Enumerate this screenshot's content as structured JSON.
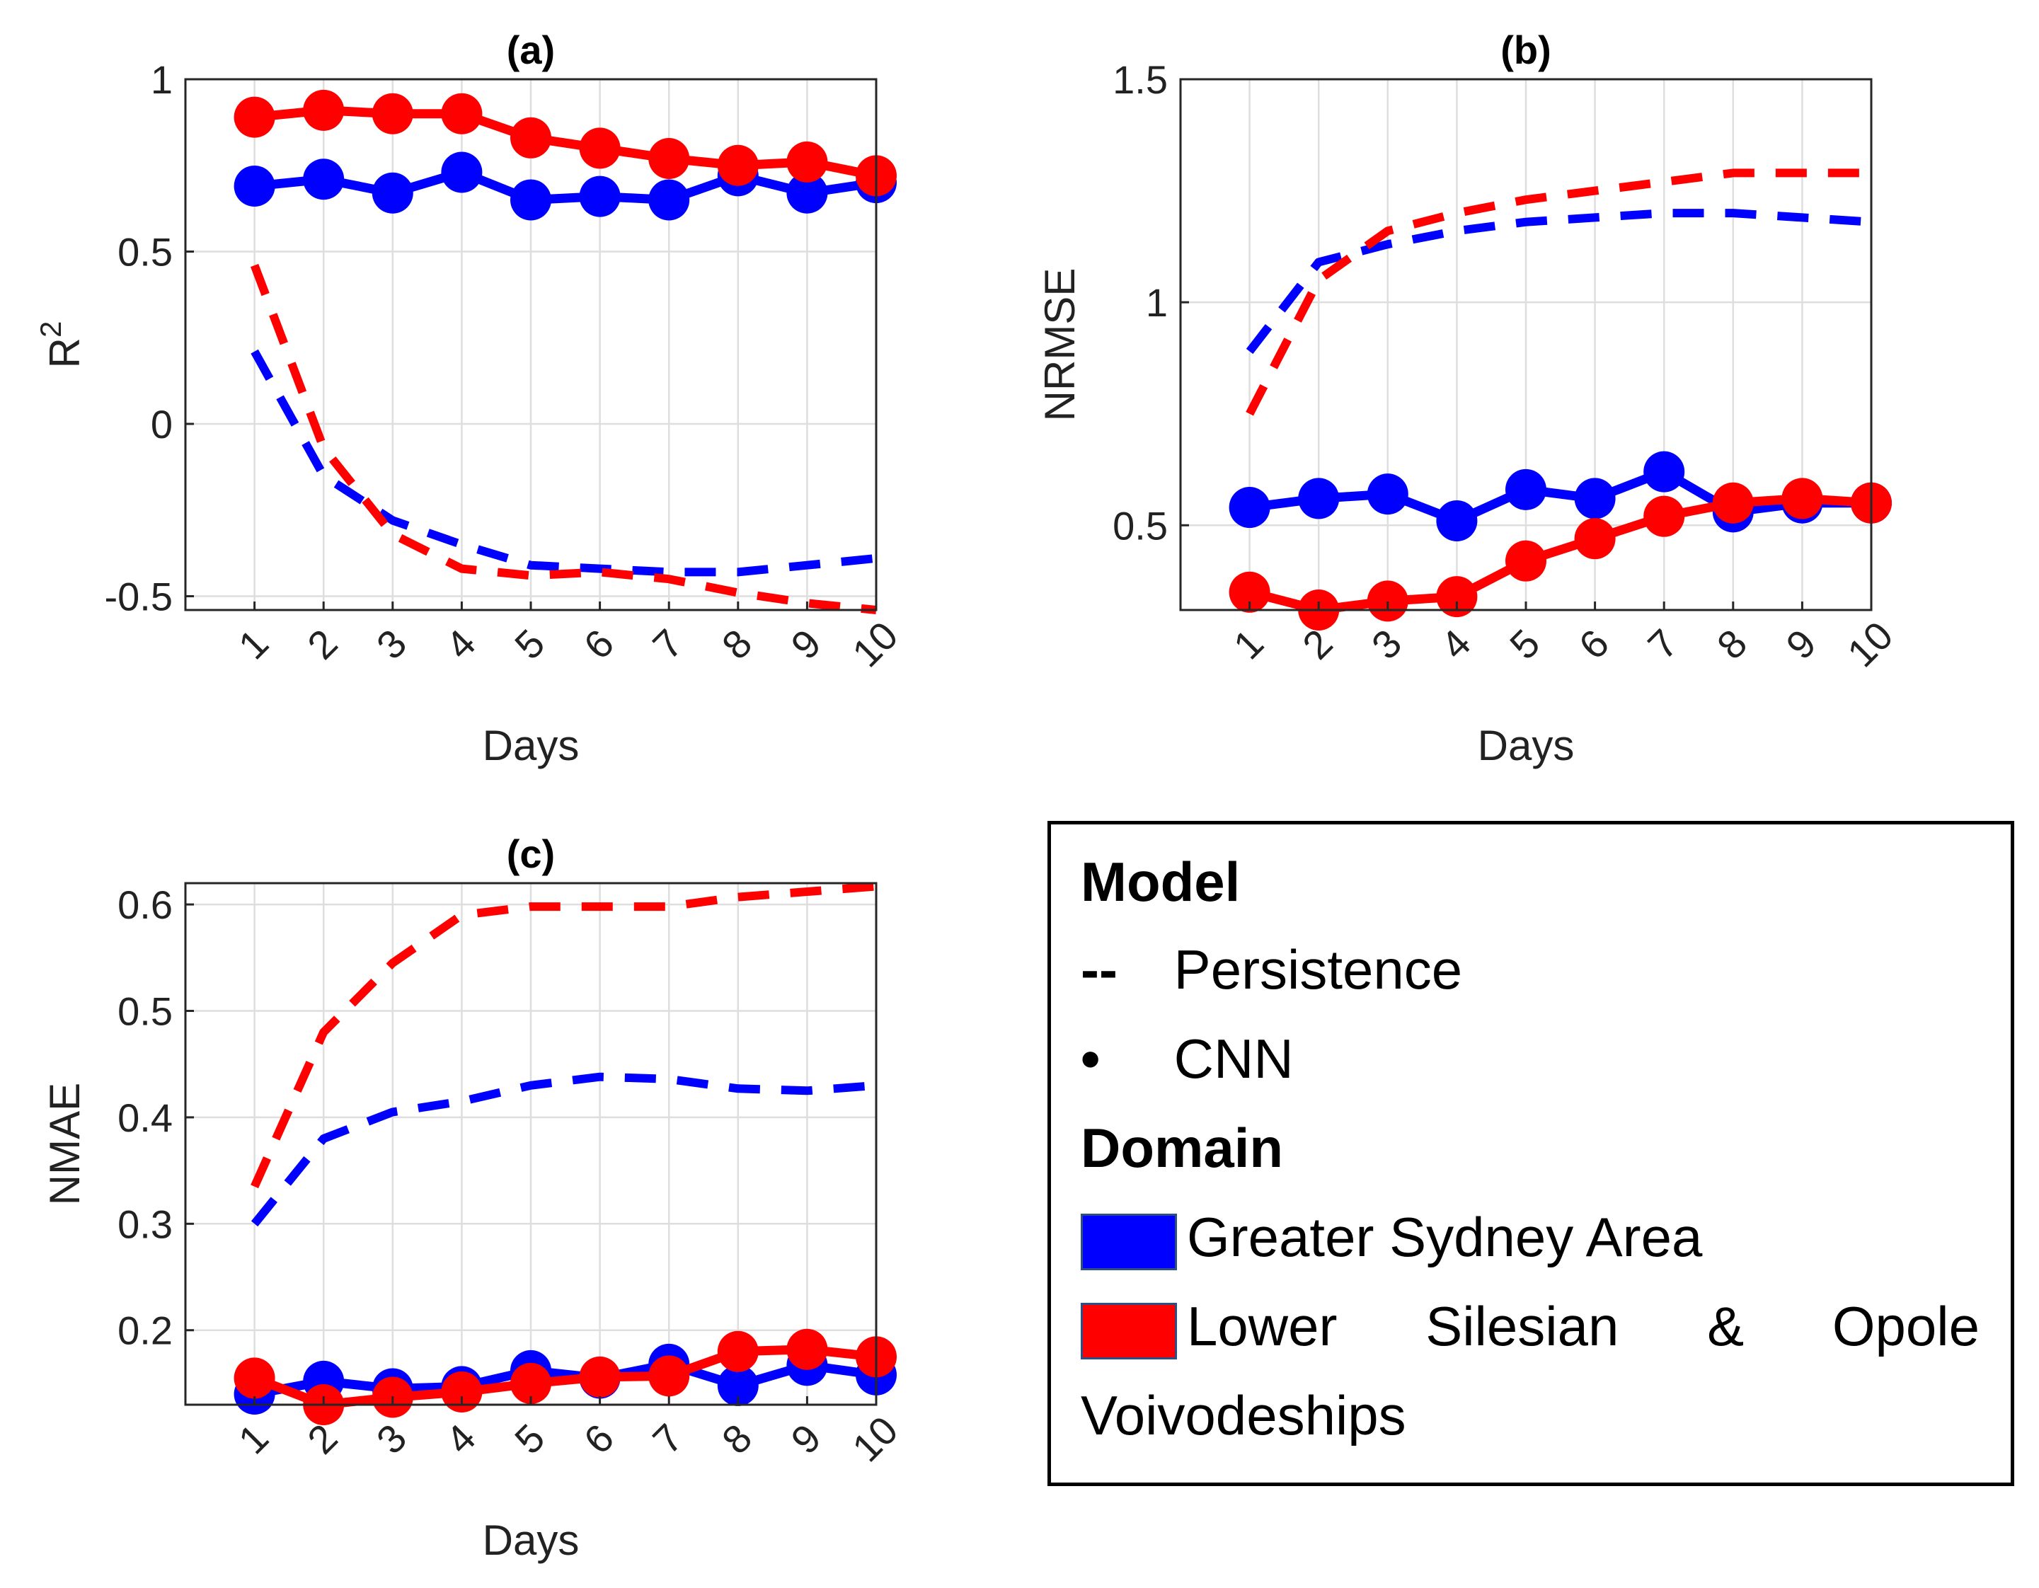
{
  "colors": {
    "sydney": "#0000ff",
    "silesia": "#ff0000",
    "grid": "#dedede",
    "axis": "#262626"
  },
  "chart_data": [
    {
      "type": "line",
      "panel": "a",
      "title": "(a)",
      "xlabel": "Days",
      "ylabel": "R",
      "ylabel_sup": "2",
      "x": [
        1,
        2,
        3,
        4,
        5,
        6,
        7,
        8,
        9,
        10
      ],
      "xlim": [
        0,
        10
      ],
      "ylim": [
        -0.54,
        1
      ],
      "yticks": [
        -0.5,
        0,
        0.5,
        1
      ],
      "ytick_labels": [
        "-0.5",
        "0",
        "0.5",
        "1"
      ],
      "series": [
        {
          "name": "Greater Sydney Area",
          "model": "Persistence",
          "style": "dashed",
          "values": [
            0.21,
            -0.15,
            -0.28,
            -0.35,
            -0.41,
            -0.42,
            -0.43,
            -0.43,
            -0.41,
            -0.39
          ]
        },
        {
          "name": "Lower Silesian & Opole Voivodeships",
          "model": "Persistence",
          "style": "dashed",
          "values": [
            0.46,
            -0.07,
            -0.32,
            -0.42,
            -0.44,
            -0.43,
            -0.45,
            -0.49,
            -0.52,
            -0.54
          ]
        },
        {
          "name": "Greater Sydney Area",
          "model": "CNN",
          "style": "markers",
          "values": [
            0.69,
            0.71,
            0.67,
            0.73,
            0.65,
            0.66,
            0.65,
            0.72,
            0.67,
            0.7
          ]
        },
        {
          "name": "Lower Silesian & Opole Voivodeships",
          "model": "CNN",
          "style": "markers",
          "values": [
            0.89,
            0.91,
            0.9,
            0.9,
            0.83,
            0.8,
            0.77,
            0.75,
            0.76,
            0.72
          ]
        }
      ]
    },
    {
      "type": "line",
      "panel": "b",
      "title": "(b)",
      "xlabel": "Days",
      "ylabel": "NRMSE",
      "x": [
        1,
        2,
        3,
        4,
        5,
        6,
        7,
        8,
        9,
        10
      ],
      "xlim": [
        0,
        10
      ],
      "ylim": [
        0.31,
        1.5
      ],
      "yticks": [
        0.5,
        1,
        1.5
      ],
      "ytick_labels": [
        "0.5",
        "1",
        "1.5"
      ],
      "series": [
        {
          "name": "Greater Sydney Area",
          "model": "Persistence",
          "style": "dashed",
          "values": [
            0.89,
            1.09,
            1.13,
            1.16,
            1.18,
            1.19,
            1.2,
            1.2,
            1.19,
            1.18
          ]
        },
        {
          "name": "Lower Silesian & Opole Voivodeships",
          "model": "Persistence",
          "style": "dashed",
          "values": [
            0.75,
            1.05,
            1.16,
            1.2,
            1.23,
            1.25,
            1.27,
            1.29,
            1.29,
            1.29
          ]
        },
        {
          "name": "Greater Sydney Area",
          "model": "CNN",
          "style": "markers",
          "values": [
            0.54,
            0.56,
            0.57,
            0.51,
            0.58,
            0.56,
            0.62,
            0.53,
            0.55,
            0.55
          ]
        },
        {
          "name": "Lower Silesian & Opole Voivodeships",
          "model": "CNN",
          "style": "markers",
          "values": [
            0.35,
            0.31,
            0.33,
            0.34,
            0.42,
            0.47,
            0.52,
            0.55,
            0.56,
            0.55
          ]
        }
      ]
    },
    {
      "type": "line",
      "panel": "c",
      "title": "(c)",
      "xlabel": "Days",
      "ylabel": "NMAE",
      "x": [
        1,
        2,
        3,
        4,
        5,
        6,
        7,
        8,
        9,
        10
      ],
      "xlim": [
        0,
        10
      ],
      "ylim": [
        0.13,
        0.62
      ],
      "yticks": [
        0.2,
        0.3,
        0.4,
        0.5,
        0.6
      ],
      "ytick_labels": [
        "0.2",
        "0.3",
        "0.4",
        "0.5",
        "0.6"
      ],
      "series": [
        {
          "name": "Greater Sydney Area",
          "model": "Persistence",
          "style": "dashed",
          "values": [
            0.3,
            0.38,
            0.405,
            0.415,
            0.43,
            0.438,
            0.436,
            0.427,
            0.425,
            0.43
          ]
        },
        {
          "name": "Lower Silesian & Opole Voivodeships",
          "model": "Persistence",
          "style": "dashed",
          "values": [
            0.335,
            0.48,
            0.545,
            0.59,
            0.598,
            0.598,
            0.598,
            0.607,
            0.612,
            0.617
          ]
        },
        {
          "name": "Greater Sydney Area",
          "model": "CNN",
          "style": "markers",
          "values": [
            0.14,
            0.152,
            0.145,
            0.147,
            0.162,
            0.155,
            0.168,
            0.148,
            0.167,
            0.158
          ]
        },
        {
          "name": "Lower Silesian & Opole Voivodeships",
          "model": "CNN",
          "style": "markers",
          "values": [
            0.155,
            0.13,
            0.137,
            0.142,
            0.15,
            0.156,
            0.157,
            0.18,
            0.182,
            0.175
          ]
        }
      ]
    }
  ],
  "legend": {
    "model_heading": "Model",
    "persistence_symbol": "--",
    "persistence_label": "Persistence",
    "cnn_symbol": "•",
    "cnn_label": "CNN",
    "domain_heading": "Domain",
    "sydney_label": "Greater Sydney Area",
    "silesia_words": [
      "Lower",
      "Silesian",
      "&",
      "Opole"
    ],
    "silesia_line2": "Voivodeships"
  }
}
